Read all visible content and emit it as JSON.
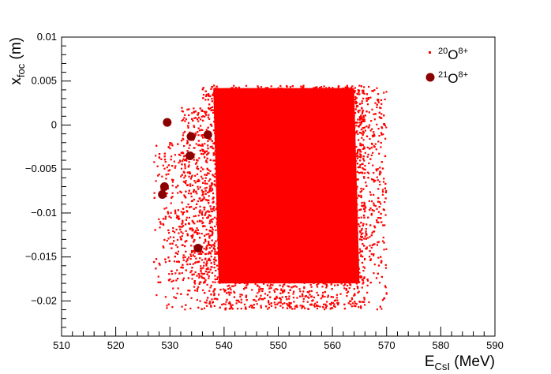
{
  "chart_data": {
    "type": "scatter",
    "title": "",
    "x_axis": {
      "label_main": "E",
      "label_sub": "CsI",
      "label_unit": " (MeV)",
      "range": [
        510,
        590
      ],
      "major_ticks": [
        510,
        520,
        530,
        540,
        550,
        560,
        570,
        580,
        590
      ],
      "tick_labels": [
        "510",
        "520",
        "530",
        "540",
        "550",
        "560",
        "570",
        "580",
        "590"
      ],
      "minor_step": 2
    },
    "y_axis": {
      "label_main": "x",
      "label_sub": "foc",
      "label_unit": " (m)",
      "range": [
        -0.024,
        0.01
      ],
      "major_ticks": [
        -0.02,
        -0.015,
        -0.01,
        -0.005,
        0,
        0.005,
        0.01
      ],
      "tick_labels": [
        "−0.02",
        "−0.015",
        "−0.01",
        "−0.005",
        "0",
        "0.005",
        "0.01"
      ],
      "minor_step": 0.001
    },
    "grid": false,
    "legend_position": "top-right",
    "series": [
      {
        "name": "20O8+",
        "legend_mass": "20",
        "legend_element": "O",
        "legend_charge": "8+",
        "color": "#ff0000",
        "marker": "small-square",
        "distribution": {
          "description_x_range": [
            527,
            570
          ],
          "description_y_range": [
            -0.021,
            0.0045
          ],
          "core_region": {
            "x": [
              538,
              564
            ],
            "y": [
              -0.018,
              0.0042
            ]
          }
        }
      },
      {
        "name": "21O8+",
        "legend_mass": "21",
        "legend_element": "O",
        "legend_charge": "8+",
        "color": "#8b0000",
        "marker": "large-circle",
        "points": [
          [
            529.5,
            0.0003
          ],
          [
            533.9,
            -0.0013
          ],
          [
            537.0,
            -0.0011
          ],
          [
            533.7,
            -0.0035
          ],
          [
            529.0,
            -0.007
          ],
          [
            528.6,
            -0.0079
          ],
          [
            535.2,
            -0.014
          ]
        ]
      }
    ]
  }
}
